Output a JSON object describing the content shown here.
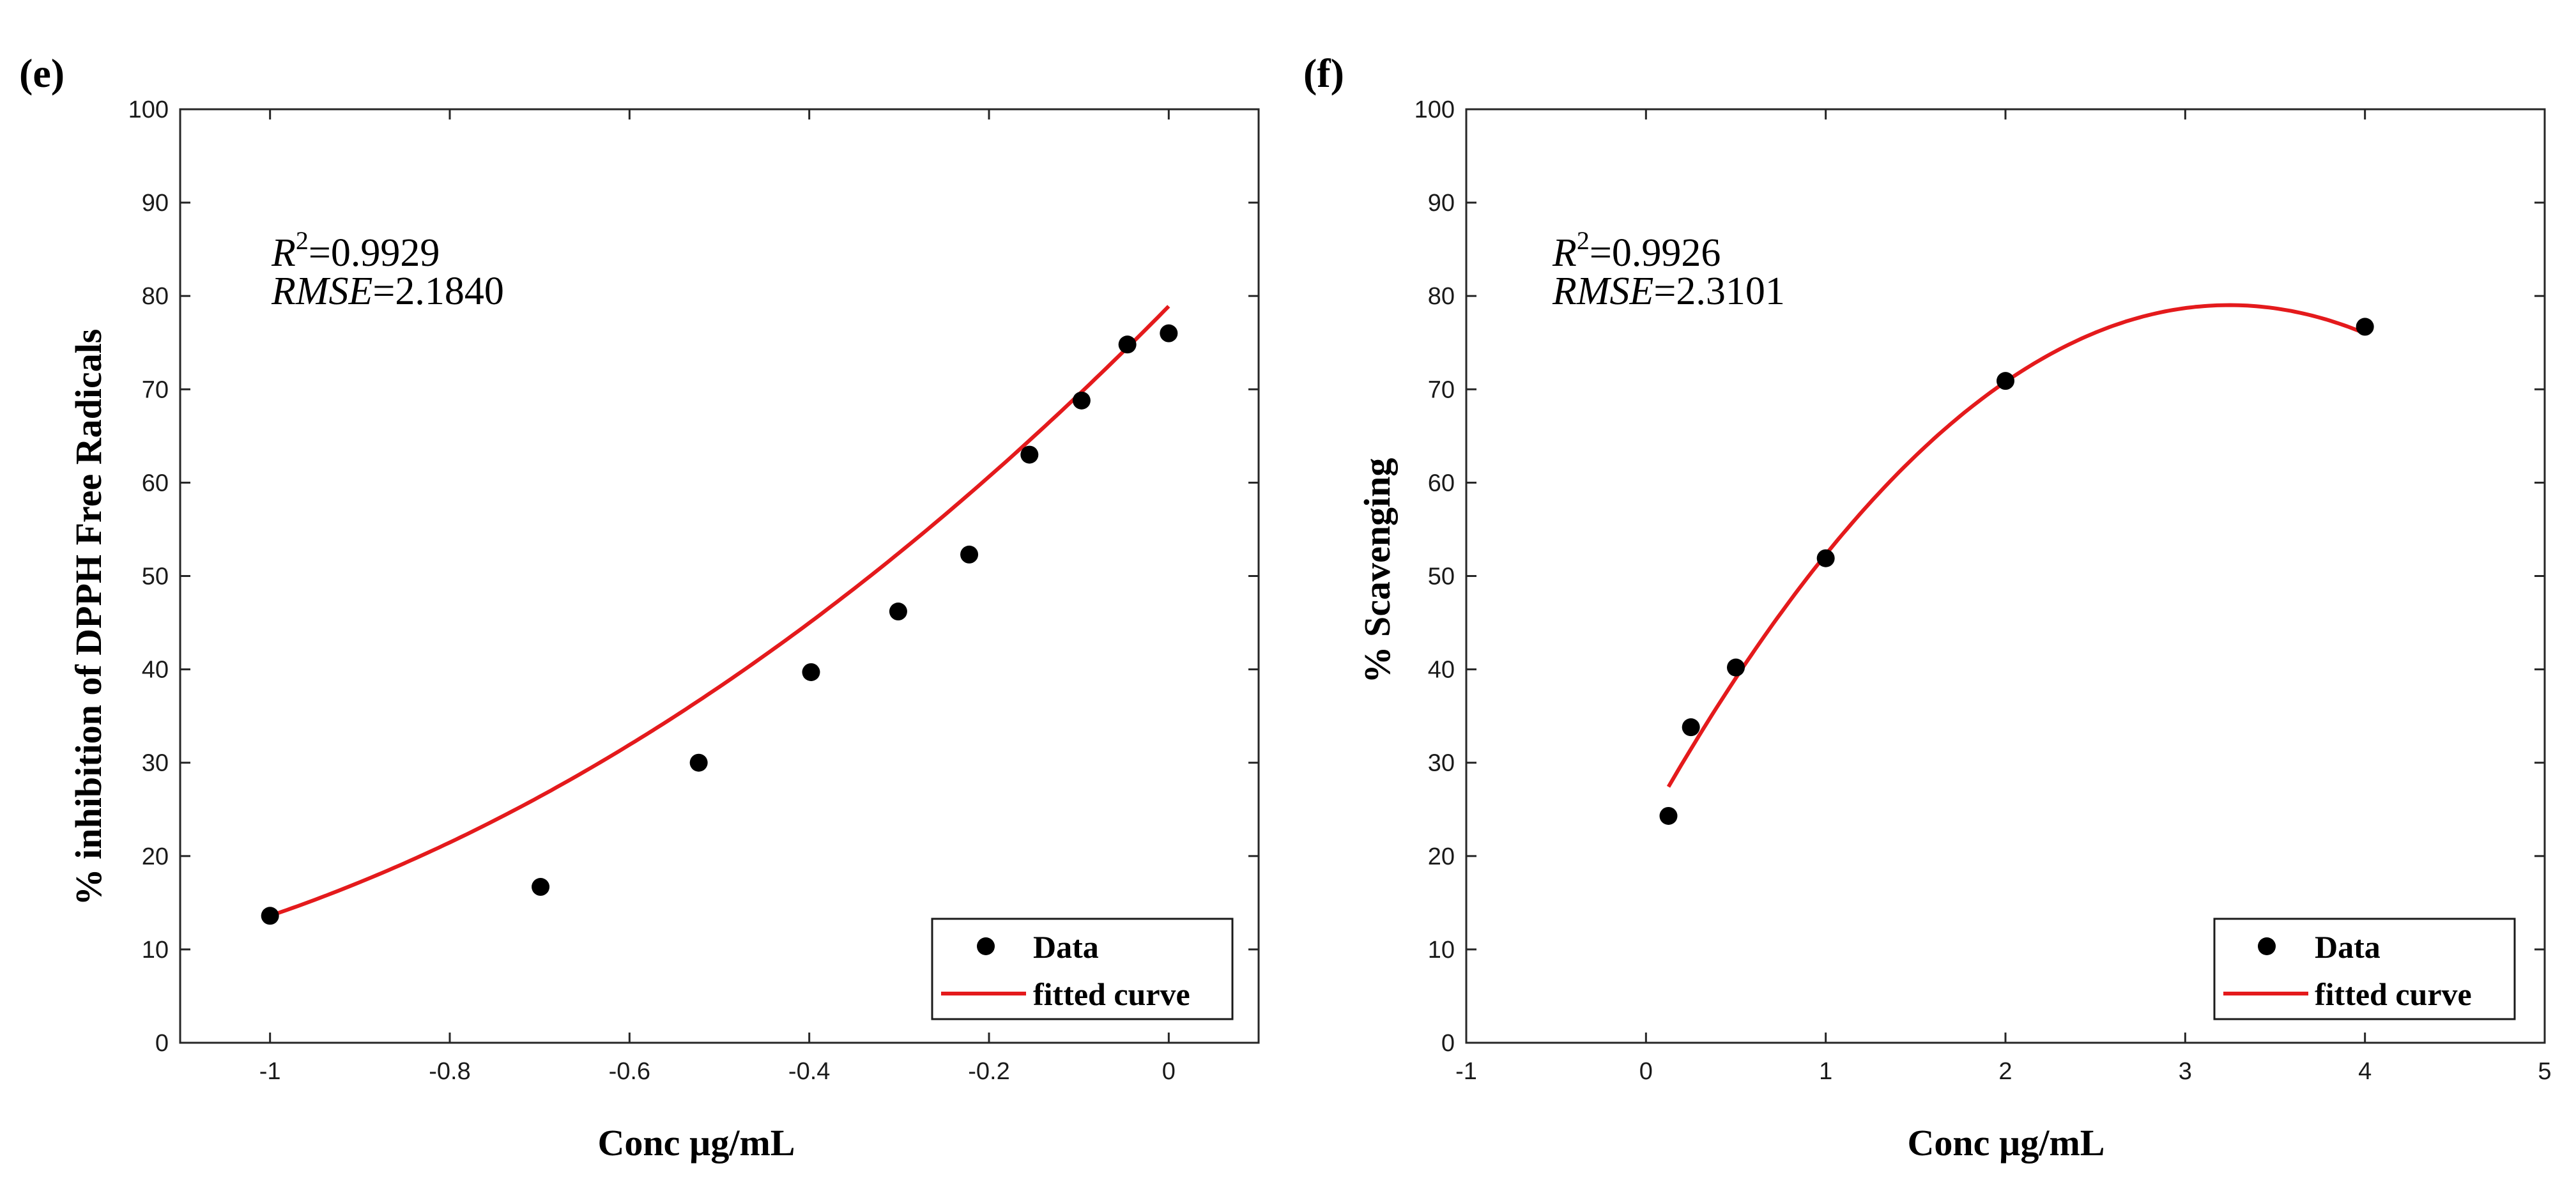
{
  "chart_data": [
    {
      "type": "scatter",
      "panel_label": "(e)",
      "title": "",
      "xlabel": "Conc µg/mL",
      "ylabel": "% inhibition of DPPH Free Radicals",
      "xlim": [
        -1.1,
        0.1
      ],
      "ylim": [
        0,
        100
      ],
      "xticks": [
        -1,
        -0.8,
        -0.6,
        -0.4,
        -0.2,
        0
      ],
      "xtick_labels": [
        "-1",
        "-0.8",
        "-0.6",
        "-0.4",
        "-0.2",
        "0"
      ],
      "yticks": [
        0,
        10,
        20,
        30,
        40,
        50,
        60,
        70,
        80,
        90,
        100
      ],
      "ytick_labels": [
        "0",
        "10",
        "20",
        "30",
        "40",
        "50",
        "60",
        "70",
        "80",
        "90",
        "100"
      ],
      "stats": {
        "r2_label": "R",
        "r2_sup": "2",
        "r2_value": "=0.9929",
        "rmse_label": "RMSE",
        "rmse_value": "=2.1840"
      },
      "legend": {
        "location": "bottom-right",
        "data": "Data",
        "fit": "fitted curve"
      },
      "series": [
        {
          "name": "Data",
          "kind": "markers",
          "color": "#000000",
          "x": [
            -1.0,
            -0.699,
            -0.523,
            -0.398,
            -0.301,
            -0.222,
            -0.155,
            -0.097,
            -0.046,
            0.0
          ],
          "y": [
            13.6,
            16.7,
            30.0,
            39.7,
            46.2,
            52.3,
            63.0,
            68.8,
            74.8,
            76.0
          ]
        },
        {
          "name": "fitted curve",
          "kind": "line",
          "color": "#e41a1c",
          "coeffs": [
            32.5,
            97.8,
            78.9
          ],
          "x_range": [
            -1.0,
            0.0
          ]
        }
      ]
    },
    {
      "type": "scatter",
      "panel_label": "(f)",
      "title": "",
      "xlabel": "Conc µg/mL",
      "ylabel": "% Scavenging",
      "xlim": [
        -1,
        5
      ],
      "ylim": [
        0,
        100
      ],
      "xticks": [
        -1,
        0,
        1,
        2,
        3,
        4,
        5
      ],
      "xtick_labels": [
        "-1",
        "0",
        "1",
        "2",
        "3",
        "4",
        "5"
      ],
      "yticks": [
        0,
        10,
        20,
        30,
        40,
        50,
        60,
        70,
        80,
        90,
        100
      ],
      "ytick_labels": [
        "0",
        "10",
        "20",
        "30",
        "40",
        "50",
        "60",
        "70",
        "80",
        "90",
        "100"
      ],
      "stats": {
        "r2_label": "R",
        "r2_sup": "2",
        "r2_value": "=0.9926",
        "rmse_label": "RMSE",
        "rmse_value": "=2.3101"
      },
      "legend": {
        "location": "bottom-right",
        "data": "Data",
        "fit": "fitted curve"
      },
      "series": [
        {
          "name": "Data",
          "kind": "markers",
          "color": "#000000",
          "x": [
            0.125,
            0.25,
            0.5,
            1.0,
            2.0,
            4.0
          ],
          "y": [
            24.3,
            33.8,
            40.2,
            51.9,
            70.9,
            76.7
          ]
        },
        {
          "name": "fitted curve",
          "kind": "line",
          "color": "#e41a1c",
          "coeffs": [
            -5.3,
            34.4,
            23.2
          ],
          "x_range": [
            0.125,
            4.0
          ]
        }
      ]
    }
  ]
}
